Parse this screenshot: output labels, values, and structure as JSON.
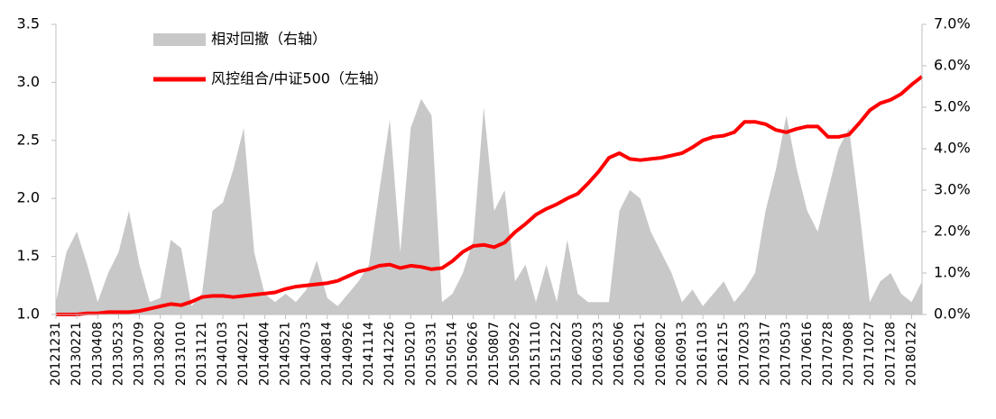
{
  "chart_data": {
    "type": "combo",
    "categories": [
      "20121231",
      null,
      "20130221",
      null,
      "20130408",
      null,
      "20130523",
      null,
      "20130709",
      null,
      "20130820",
      null,
      "20131010",
      null,
      "20131121",
      null,
      "20140103",
      null,
      "20140221",
      null,
      "20140404",
      null,
      "20140521",
      null,
      "20140703",
      null,
      "20140814",
      null,
      "20140926",
      null,
      "20141114",
      null,
      "20141226",
      null,
      "20150210",
      null,
      "20150331",
      null,
      "20150514",
      null,
      "20150626",
      null,
      "20150807",
      null,
      "20150922",
      null,
      "20151110",
      null,
      "20151222",
      null,
      "20160203",
      null,
      "20160323",
      null,
      "20160506",
      null,
      "20160621",
      null,
      "20160802",
      null,
      "20160913",
      null,
      "20161103",
      null,
      "20161215",
      null,
      "20170203",
      null,
      "20170317",
      null,
      "20170503",
      null,
      "20170616",
      null,
      "20170728",
      null,
      "20170908",
      null,
      "20171027",
      null,
      "20171208",
      null,
      "20180122",
      null
    ],
    "series": [
      {
        "name": "相对回撤（右轴）",
        "type": "area",
        "axis": "y2",
        "color": "#c8c8c8",
        "values": [
          0.3,
          1.5,
          2.0,
          1.2,
          0.3,
          1.0,
          1.5,
          2.5,
          1.2,
          0.3,
          0.4,
          1.8,
          1.6,
          0.2,
          0.5,
          2.5,
          2.7,
          3.5,
          4.5,
          1.5,
          0.5,
          0.3,
          0.5,
          0.3,
          0.6,
          1.3,
          0.4,
          0.2,
          0.5,
          0.8,
          1.2,
          3.0,
          4.7,
          1.5,
          4.5,
          5.2,
          4.8,
          0.3,
          0.5,
          1.0,
          1.8,
          5.0,
          2.5,
          3.0,
          0.8,
          1.2,
          0.3,
          1.2,
          0.3,
          1.8,
          0.5,
          0.3,
          0.3,
          0.3,
          2.5,
          3.0,
          2.8,
          2.0,
          1.5,
          1.0,
          0.3,
          0.6,
          0.2,
          0.5,
          0.8,
          0.3,
          0.6,
          1.0,
          2.5,
          3.5,
          4.8,
          3.5,
          2.5,
          2.0,
          3.0,
          4.0,
          4.5,
          2.5,
          0.3,
          0.8,
          1.0,
          0.5,
          0.3,
          0.8
        ]
      },
      {
        "name": "风控组合/中证500（左轴）",
        "type": "line",
        "color": "#ff0000",
        "values": [
          1.0,
          1.0,
          1.0,
          1.01,
          1.01,
          1.02,
          1.02,
          1.02,
          1.03,
          1.05,
          1.07,
          1.09,
          1.08,
          1.11,
          1.15,
          1.16,
          1.16,
          1.15,
          1.16,
          1.17,
          1.18,
          1.19,
          1.22,
          1.24,
          1.25,
          1.26,
          1.27,
          1.29,
          1.33,
          1.37,
          1.39,
          1.42,
          1.43,
          1.4,
          1.42,
          1.41,
          1.39,
          1.4,
          1.46,
          1.54,
          1.59,
          1.6,
          1.58,
          1.62,
          1.71,
          1.78,
          1.86,
          1.91,
          1.95,
          2.0,
          2.04,
          2.13,
          2.23,
          2.35,
          2.39,
          2.34,
          2.33,
          2.34,
          2.35,
          2.37,
          2.39,
          2.44,
          2.5,
          2.53,
          2.54,
          2.57,
          2.66,
          2.66,
          2.64,
          2.59,
          2.57,
          2.6,
          2.62,
          2.62,
          2.53,
          2.53,
          2.55,
          2.65,
          2.76,
          2.82,
          2.85,
          2.9,
          2.98,
          3.05
        ]
      }
    ],
    "ylim": [
      1,
      3.5
    ],
    "yticks": [
      {
        "value": 1,
        "label": "1.0"
      },
      1.5,
      {
        "value": 2,
        "label": "2.0"
      },
      2.5,
      {
        "value": 3,
        "label": "3.0"
      },
      3.5
    ],
    "y2lim": [
      0,
      7
    ],
    "y2ticks": [
      {
        "value": 0,
        "label": "0.0%"
      },
      {
        "value": 1,
        "label": "1.0%"
      },
      {
        "value": 2,
        "label": "2.0%"
      },
      {
        "value": 3,
        "label": "3.0%"
      },
      {
        "value": 4,
        "label": "4.0%"
      },
      {
        "value": 5,
        "label": "5.0%"
      },
      {
        "value": 6,
        "label": "6.0%"
      },
      {
        "value": 7,
        "label": "7.0%"
      }
    ],
    "grid": false,
    "legend": "upper-left"
  }
}
